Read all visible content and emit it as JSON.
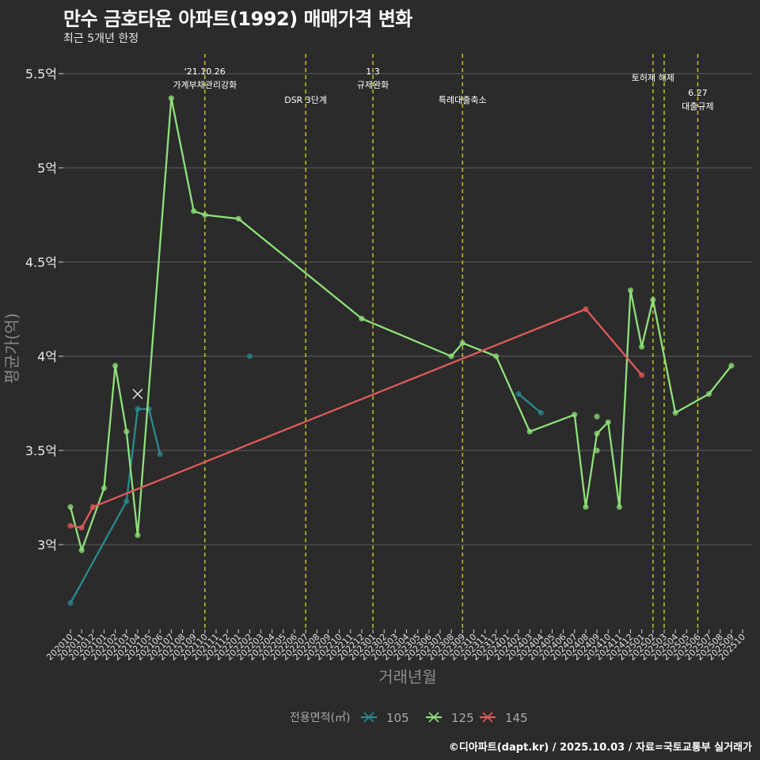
{
  "chart_data": {
    "type": "line",
    "title": "만수 금호타운 아파트(1992) 매매가격 변화",
    "subtitle": "최근 5개년 한정",
    "xlabel": "거래년월",
    "ylabel": "평균가(억)",
    "ylim": [
      2.6,
      5.6
    ],
    "y_ticks": [
      3,
      3.5,
      4,
      4.5,
      5,
      5.5
    ],
    "y_tick_labels": [
      "3억",
      "3.5억",
      "4억",
      "4.5억",
      "5억",
      "5.5억"
    ],
    "x_ticks": [
      "202010",
      "202011",
      "202012",
      "202101",
      "202102",
      "202103",
      "202104",
      "202105",
      "202106",
      "202107",
      "202108",
      "202109",
      "202110",
      "202111",
      "202112",
      "202201",
      "202202",
      "202203",
      "202204",
      "202205",
      "202206",
      "202207",
      "202208",
      "202209",
      "202210",
      "202211",
      "202212",
      "202301",
      "202302",
      "202303",
      "202304",
      "202305",
      "202306",
      "202307",
      "202308",
      "202309",
      "202310",
      "202311",
      "202312",
      "202401",
      "202402",
      "202403",
      "202404",
      "202405",
      "202406",
      "202407",
      "202408",
      "202409",
      "202410",
      "202411",
      "202412",
      "202501",
      "202502",
      "202503",
      "202504",
      "202505",
      "202506",
      "202507",
      "202508",
      "202509",
      "202510"
    ],
    "legend_title": "전용면적(㎡)",
    "series": [
      {
        "name": "105",
        "color": "#2a8a8f",
        "line": [
          [
            "202010",
            2.69
          ],
          [
            "202103",
            3.23
          ],
          [
            "202104",
            3.72
          ],
          [
            "202105",
            3.72
          ],
          [
            "202106",
            3.48
          ]
        ],
        "line2": [
          [
            "202402",
            3.8
          ],
          [
            "202404",
            3.7
          ]
        ],
        "extra_points": [
          [
            "202202",
            4.0
          ]
        ]
      },
      {
        "name": "125",
        "color": "#8fe07a",
        "line": [
          [
            "202010",
            3.2
          ],
          [
            "202011",
            2.97
          ],
          [
            "202101",
            3.3
          ],
          [
            "202102",
            3.95
          ],
          [
            "202103",
            3.6
          ],
          [
            "202104",
            3.05
          ],
          [
            "202107",
            5.37
          ],
          [
            "202109",
            4.77
          ],
          [
            "202110",
            4.75
          ],
          [
            "202201",
            4.73
          ],
          [
            "202212",
            4.2
          ],
          [
            "202308",
            4.0
          ],
          [
            "202309",
            4.07
          ],
          [
            "202312",
            4.0
          ],
          [
            "202403",
            3.6
          ],
          [
            "202407",
            3.69
          ],
          [
            "202408",
            3.2
          ],
          [
            "202409",
            3.59
          ],
          [
            "202410",
            3.65
          ],
          [
            "202411",
            3.2
          ],
          [
            "202412",
            4.35
          ],
          [
            "202501",
            4.05
          ],
          [
            "202502",
            4.3
          ],
          [
            "202504",
            3.7
          ],
          [
            "202507",
            3.8
          ],
          [
            "202509",
            3.95
          ]
        ],
        "extra_points": [
          [
            "202409",
            3.5
          ],
          [
            "202409",
            3.68
          ]
        ]
      },
      {
        "name": "145",
        "color": "#e05a5a",
        "line": [
          [
            "202010",
            3.1
          ],
          [
            "202011",
            3.09
          ],
          [
            "202012",
            3.2
          ],
          [
            "202408",
            4.25
          ],
          [
            "202501",
            3.9
          ]
        ],
        "extra_points": []
      }
    ],
    "marker_cross": {
      "x": "202104",
      "y": 3.8
    },
    "annotations": [
      {
        "x": "202110",
        "lines": [
          "'21.10.26",
          "가계부채관리강화"
        ],
        "level": "high"
      },
      {
        "x": "202207",
        "lines": [
          "DSR 3단계"
        ],
        "level": "low"
      },
      {
        "x": "202301",
        "lines": [
          "1.3",
          "규제완화"
        ],
        "level": "high"
      },
      {
        "x": "202309",
        "lines": [
          "특례대출축소"
        ],
        "level": "low"
      },
      {
        "x": "202502",
        "lines": [
          "토허제 해제"
        ],
        "level": "mid"
      },
      {
        "x": "202503",
        "lines": [],
        "level": "mid"
      },
      {
        "x": "202506",
        "lines": [
          "6.27",
          "대출규제"
        ],
        "level": "lower"
      }
    ]
  },
  "credit": "©디아파트(dapt.kr) / 2025.10.03 / 자료=국토교통부 실거래가"
}
